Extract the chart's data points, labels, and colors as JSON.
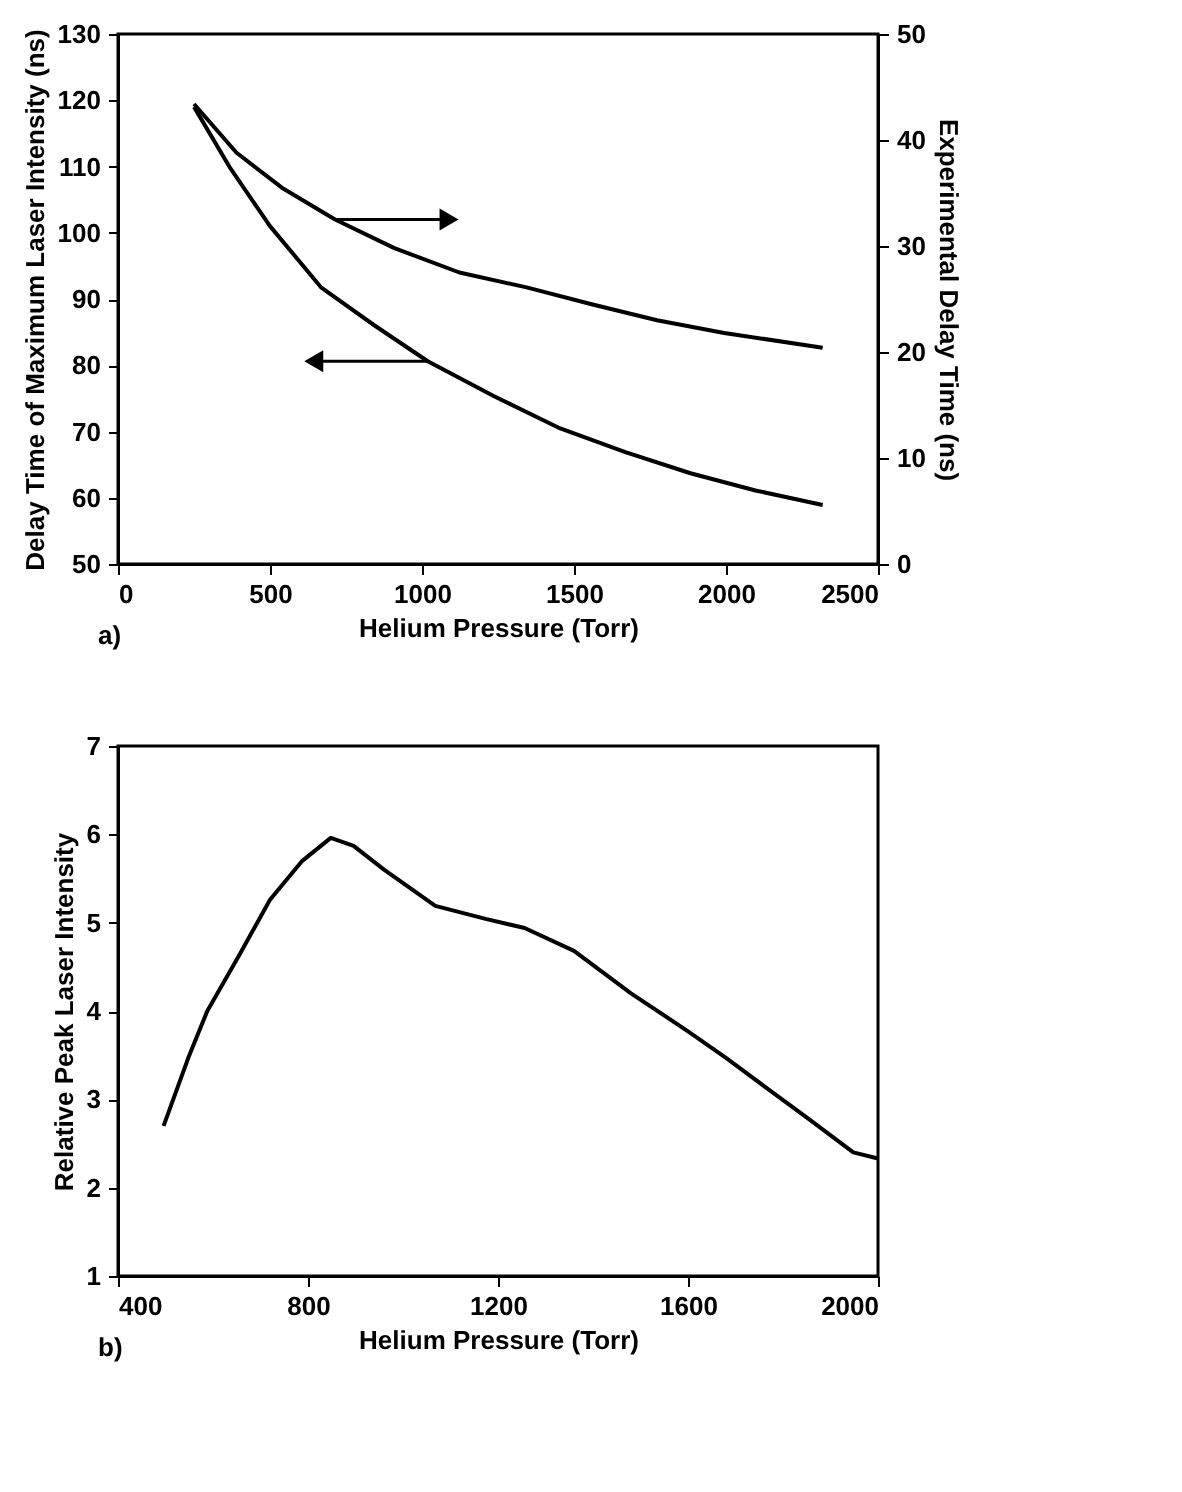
{
  "chart_data": [
    {
      "type": "line",
      "xlabel": "Helium Pressure (Torr)",
      "ylabel": "Delay Time of Maximum Laser Intensity (ns)",
      "y2label": "Experimental Delay Time (ns)",
      "annotations": [
        "a)"
      ],
      "xlim": [
        0,
        2500
      ],
      "xticks": [
        0,
        500,
        1000,
        1500,
        2000,
        2500
      ],
      "ylim": [
        50,
        130
      ],
      "yticks": [
        50,
        60,
        70,
        80,
        90,
        100,
        110,
        120,
        130
      ],
      "y2lim": [
        0,
        50
      ],
      "y2ticks": [
        0,
        10,
        20,
        30,
        40,
        50
      ],
      "grid": false,
      "marker": "none",
      "line_style": "solid",
      "series": [
        {
          "color": "#000000",
          "x": [
            250,
            370,
            500,
            669,
            844,
            1019,
            1234,
            1448,
            1669,
            1883,
            2097,
            2318
          ],
          "values": [
            119,
            109.7,
            101,
            91.7,
            86,
            80.6,
            75.4,
            70.6,
            66.9,
            63.7,
            61.1,
            58.9
          ]
        },
        {
          "color": "#000000",
          "axis": "y2",
          "x": [
            250,
            390,
            539,
            714,
            909,
            1123,
            1344,
            1558,
            1773,
            1994,
            2318
          ],
          "values": [
            43.4,
            38.8,
            35.5,
            32.5,
            29.8,
            27.5,
            26.1,
            24.5,
            23.0,
            21.8,
            20.4
          ]
        }
      ]
    },
    {
      "type": "line",
      "xlabel": "Helium Pressure (Torr)",
      "ylabel": "Relative Peak Laser Intensity",
      "annotations": [
        "b)"
      ],
      "xlim": [
        400,
        2000
      ],
      "xticks": [
        400,
        800,
        1200,
        1600,
        2000
      ],
      "ylim": [
        1,
        7
      ],
      "yticks": [
        1,
        2,
        3,
        4,
        5,
        6,
        7
      ],
      "grid": false,
      "marker": "none",
      "line_style": "solid",
      "series": [
        {
          "color": "#000000",
          "x": [
            496,
            548,
            588,
            656,
            720,
            788,
            848,
            896,
            960,
            1068,
            1176,
            1256,
            1360,
            1480,
            1600,
            1680,
            1760,
            1856,
            1948,
            2000
          ],
          "values": [
            2.7,
            3.47,
            4.0,
            4.64,
            5.26,
            5.7,
            5.96,
            5.87,
            5.6,
            5.19,
            5.04,
            4.94,
            4.68,
            4.2,
            3.77,
            3.47,
            3.15,
            2.77,
            2.4,
            2.33
          ]
        }
      ]
    }
  ]
}
